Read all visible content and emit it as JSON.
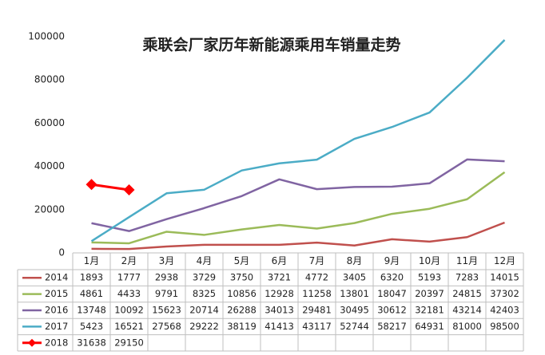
{
  "chart_data": {
    "type": "line",
    "title": "乘联会厂家历年新能源乘用车销量走势",
    "categories": [
      "1月",
      "2月",
      "3月",
      "4月",
      "5月",
      "6月",
      "7月",
      "8月",
      "9月",
      "10月",
      "11月",
      "12月"
    ],
    "series": [
      {
        "name": "2014",
        "color": "#c0504d",
        "values": [
          1893,
          1777,
          2938,
          3729,
          3750,
          3721,
          4772,
          3405,
          6320,
          5193,
          7283,
          14015
        ]
      },
      {
        "name": "2015",
        "color": "#9bbb59",
        "values": [
          4861,
          4433,
          9791,
          8325,
          10856,
          12928,
          11258,
          13801,
          18047,
          20397,
          24815,
          37302
        ]
      },
      {
        "name": "2016",
        "color": "#8064a2",
        "values": [
          13748,
          10092,
          15623,
          20714,
          26288,
          34013,
          29481,
          30495,
          30612,
          32181,
          43214,
          42403
        ]
      },
      {
        "name": "2017",
        "color": "#4bacc6",
        "values": [
          5423,
          16521,
          27568,
          29222,
          38119,
          41413,
          43117,
          52744,
          58217,
          64931,
          81000,
          98500
        ]
      },
      {
        "name": "2018",
        "color": "#ff0000",
        "marker": "diamond",
        "values": [
          31638,
          29150,
          null,
          null,
          null,
          null,
          null,
          null,
          null,
          null,
          null,
          null
        ]
      }
    ],
    "ylim": [
      0,
      100000
    ],
    "yticks": [
      0,
      20000,
      40000,
      60000,
      80000,
      100000
    ],
    "grid": false
  }
}
